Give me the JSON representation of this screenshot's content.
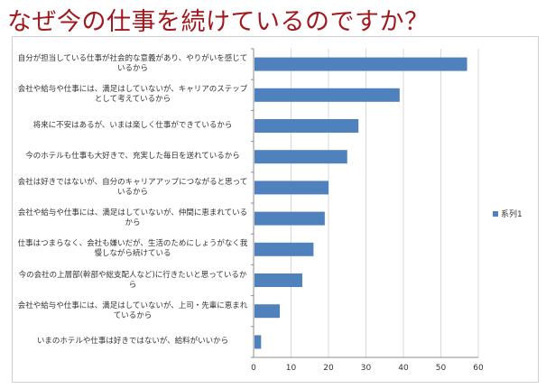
{
  "title": "なぜ今の仕事を続けているのですか？",
  "chart_data": {
    "type": "bar",
    "orientation": "horizontal",
    "categories": [
      "自分が担当している仕事が社会的な意義があり、やりがいを感じているから",
      "会社や給与や仕事には、満足はしていないが、キャリアのステップとして考えているから",
      "将来に不安はあるが、いまは楽しく仕事ができているから",
      "今のホテルも仕事も大好きで、充実した毎日を送れているから",
      "会社は好きではないが、自分のキャリアアップにつながると思っているから",
      "会社や給与や仕事には、満足はしていないが、仲間に恵まれているから",
      "仕事はつまらなく、会社も嫌いだが、生活のためにしょうがなく我慢しながら続けている",
      "今の会社の上層部(幹部や総支配人など)に行きたいと思っているから",
      "会社や給与や仕事には、満足はしていないが、上司・先輩に恵まれているから",
      "いまのホテルや仕事は好きではないが、給料がいいから"
    ],
    "series": [
      {
        "name": "系列1",
        "values": [
          57,
          39,
          28,
          25,
          20,
          19,
          16,
          13,
          7,
          2
        ]
      }
    ],
    "xlim": [
      0,
      60
    ],
    "xticks": [
      0,
      10,
      20,
      30,
      40,
      50,
      60
    ],
    "grid": true,
    "legend": "right",
    "color": "#4f81bd"
  }
}
